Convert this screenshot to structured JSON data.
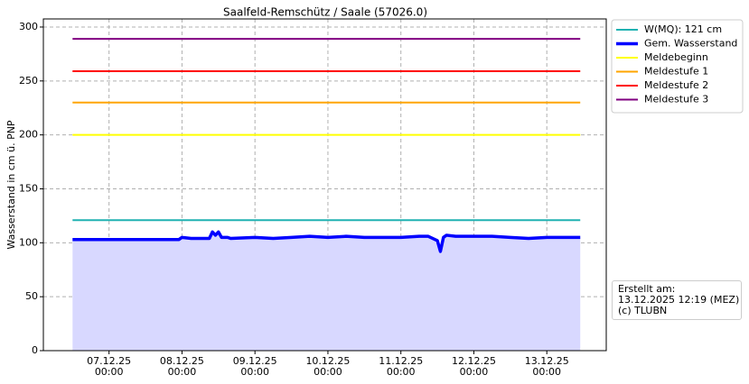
{
  "chart_data": {
    "type": "line",
    "title": "Saalfeld-Remschütz / Saale (57026.0)",
    "y_label": "Wasserstand in cm ü. PNP",
    "annotation": "Erstellt am:\n13.12.2025 12:19 (MEZ)\n(c) TLUBN",
    "xlim": [
      "2025-12-06 02:24",
      "2025-12-13 19:33"
    ],
    "xticks": [
      {
        "value": "2025-12-07 00:00",
        "label": "07.12.25\n00:00"
      },
      {
        "value": "2025-12-08 00:00",
        "label": "08.12.25\n00:00"
      },
      {
        "value": "2025-12-09 00:00",
        "label": "09.12.25\n00:00"
      },
      {
        "value": "2025-12-10 00:00",
        "label": "10.12.25\n00:00"
      },
      {
        "value": "2025-12-11 00:00",
        "label": "11.12.25\n00:00"
      },
      {
        "value": "2025-12-12 00:00",
        "label": "12.12.25\n00:00"
      },
      {
        "value": "2025-12-13 00:00",
        "label": "13.12.25\n00:00"
      }
    ],
    "ylim": [
      0,
      307.5
    ],
    "yticks": [
      0,
      50,
      100,
      150,
      200,
      250,
      300
    ],
    "grid": true,
    "legend": "outside-upper-right",
    "series": [
      {
        "name": "W(MQ): 121 cm",
        "color": "#20b2b2",
        "width": 2,
        "x": [
          "2025-12-06 12:00",
          "2025-12-13 11:00"
        ],
        "values": [
          121,
          121
        ]
      },
      {
        "name": "Gem. Wasserstand",
        "color": "#0000ff",
        "width": 3.5,
        "fill": "#d8d8ff",
        "x": [
          "2025-12-06 12:00",
          "2025-12-07 00:00",
          "2025-12-07 12:00",
          "2025-12-07 23:00",
          "2025-12-08 00:00",
          "2025-12-08 03:00",
          "2025-12-08 09:00",
          "2025-12-08 10:00",
          "2025-12-08 11:00",
          "2025-12-08 12:00",
          "2025-12-08 13:00",
          "2025-12-08 15:00",
          "2025-12-08 16:00",
          "2025-12-09 00:00",
          "2025-12-09 06:00",
          "2025-12-09 12:00",
          "2025-12-09 18:00",
          "2025-12-10 00:00",
          "2025-12-10 06:00",
          "2025-12-10 12:00",
          "2025-12-10 18:00",
          "2025-12-11 00:00",
          "2025-12-11 06:00",
          "2025-12-11 09:00",
          "2025-12-11 12:00",
          "2025-12-11 13:00",
          "2025-12-11 14:00",
          "2025-12-11 15:00",
          "2025-12-11 18:00",
          "2025-12-12 00:00",
          "2025-12-12 06:00",
          "2025-12-12 12:00",
          "2025-12-12 18:00",
          "2025-12-13 00:00",
          "2025-12-13 11:00"
        ],
        "values": [
          103,
          103,
          103,
          103,
          105,
          104,
          104,
          110,
          107,
          110,
          105,
          105,
          104,
          105,
          104,
          105,
          106,
          105,
          106,
          105,
          105,
          105,
          106,
          106,
          102,
          92,
          105,
          107,
          106,
          106,
          106,
          105,
          104,
          105,
          105
        ]
      },
      {
        "name": "Meldebeginn",
        "color": "#ffff00",
        "width": 2,
        "x": [
          "2025-12-06 12:00",
          "2025-12-13 11:00"
        ],
        "values": [
          200,
          200
        ]
      },
      {
        "name": "Meldestufe 1",
        "color": "#ffa500",
        "width": 2,
        "x": [
          "2025-12-06 12:00",
          "2025-12-13 11:00"
        ],
        "values": [
          230,
          230
        ]
      },
      {
        "name": "Meldestufe 2",
        "color": "#ff0000",
        "width": 2,
        "x": [
          "2025-12-06 12:00",
          "2025-12-13 11:00"
        ],
        "values": [
          259,
          259
        ]
      },
      {
        "name": "Meldestufe 3",
        "color": "#800080",
        "width": 2,
        "x": [
          "2025-12-06 12:00",
          "2025-12-13 11:00"
        ],
        "values": [
          289,
          289
        ]
      }
    ]
  }
}
